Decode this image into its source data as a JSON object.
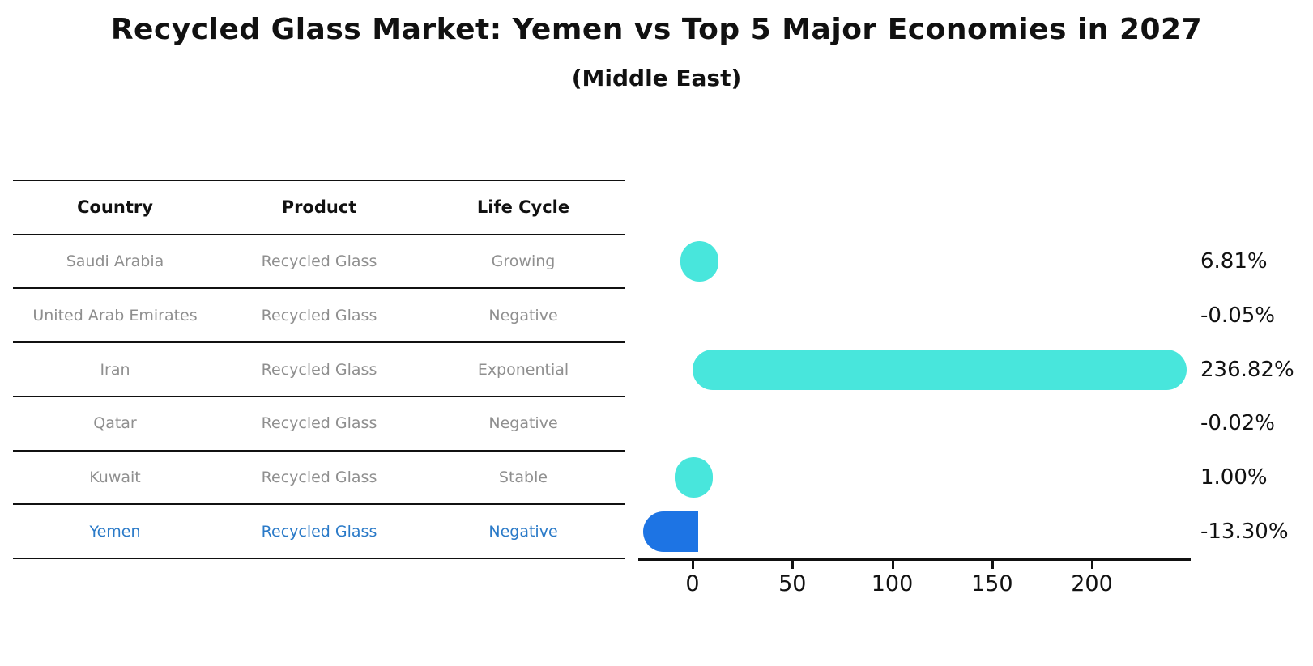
{
  "title": "Recycled Glass Market: Yemen vs Top 5 Major Economies in 2027",
  "subtitle": "(Middle East)",
  "table": {
    "headers": [
      "Country",
      "Product",
      "Life Cycle"
    ]
  },
  "chart_data": {
    "type": "bar",
    "orientation": "horizontal",
    "title": "Recycled Glass Market: Yemen vs Top 5 Major Economies in 2027",
    "subtitle": "(Middle East)",
    "categories": [
      "Saudi Arabia",
      "United Arab Emirates",
      "Iran",
      "Qatar",
      "Kuwait",
      "Yemen"
    ],
    "values": [
      6.81,
      -0.05,
      236.82,
      -0.02,
      1.0,
      -13.3
    ],
    "rows": [
      {
        "country": "Saudi Arabia",
        "product": "Recycled Glass",
        "life_cycle": "Growing",
        "value": 6.81,
        "label": "6.81%",
        "highlight": false
      },
      {
        "country": "United Arab Emirates",
        "product": "Recycled Glass",
        "life_cycle": "Negative",
        "value": -0.05,
        "label": "-0.05%",
        "highlight": false
      },
      {
        "country": "Iran",
        "product": "Recycled Glass",
        "life_cycle": "Exponential",
        "value": 236.82,
        "label": "236.82%",
        "highlight": false
      },
      {
        "country": "Qatar",
        "product": "Recycled Glass",
        "life_cycle": "Negative",
        "value": -0.02,
        "label": "-0.02%",
        "highlight": false
      },
      {
        "country": "Kuwait",
        "product": "Recycled Glass",
        "life_cycle": "Stable",
        "value": 1.0,
        "label": "1.00%",
        "highlight": false
      },
      {
        "country": "Yemen",
        "product": "Recycled Glass",
        "life_cycle": "Negative",
        "value": -13.3,
        "label": "-13.30%",
        "highlight": true
      }
    ],
    "x_ticks": [
      0,
      50,
      100,
      150,
      200
    ],
    "xlim": [
      -28,
      250
    ],
    "grid": false,
    "legend": false,
    "colors": {
      "bar_default": "#48e6dc",
      "bar_highlight": "#1d74e4",
      "text_highlight": "#2a7ac8",
      "text_muted": "#8f8f8f",
      "axis": "#111111"
    }
  }
}
